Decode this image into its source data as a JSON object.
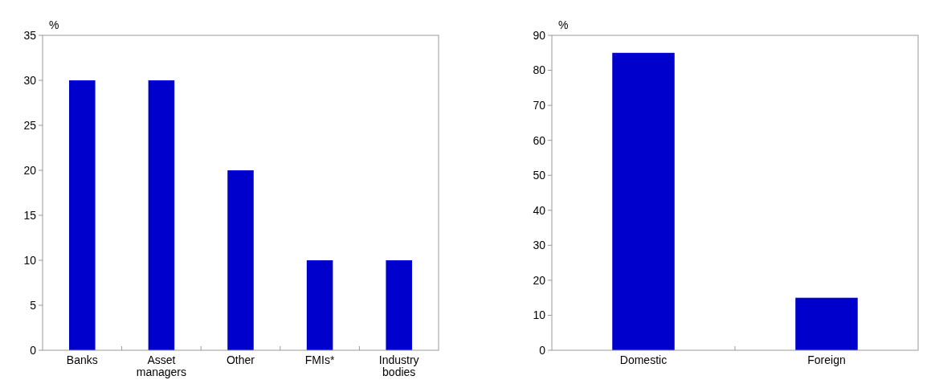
{
  "chart_data": [
    {
      "type": "bar",
      "ylabel": "%",
      "categories": [
        "Banks",
        "Asset managers",
        "Other",
        "FMIs*",
        "Industry bodies"
      ],
      "values": [
        30,
        30,
        20,
        10,
        10
      ],
      "color": "#0000cc",
      "ylim": [
        0,
        35
      ],
      "yticks": [
        0,
        5,
        10,
        15,
        20,
        25,
        30,
        35
      ]
    },
    {
      "type": "bar",
      "ylabel": "%",
      "categories": [
        "Domestic",
        "Foreign"
      ],
      "values": [
        85,
        15
      ],
      "color": "#0000cc",
      "ylim": [
        0,
        90
      ],
      "yticks": [
        0,
        10,
        20,
        30,
        40,
        50,
        60,
        70,
        80,
        90
      ]
    }
  ]
}
